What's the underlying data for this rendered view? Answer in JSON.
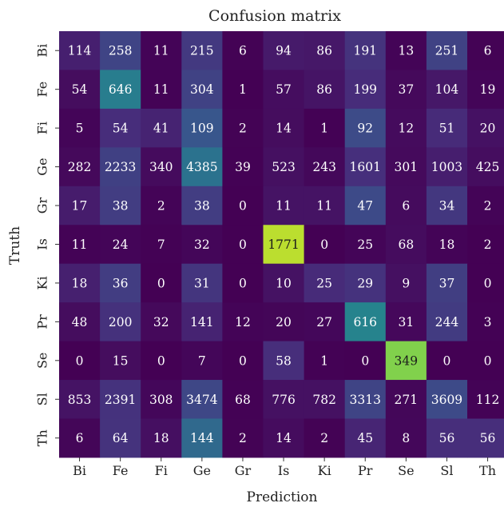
{
  "chart_data": {
    "type": "heatmap",
    "title": "Confusion matrix",
    "xlabel": "Prediction",
    "ylabel": "Truth",
    "x_categories": [
      "Bi",
      "Fe",
      "Fi",
      "Ge",
      "Gr",
      "Is",
      "Ki",
      "Pr",
      "Se",
      "Sl",
      "Th"
    ],
    "y_categories": [
      "Bi",
      "Fe",
      "Fi",
      "Ge",
      "Gr",
      "Is",
      "Ki",
      "Pr",
      "Se",
      "Sl",
      "Th"
    ],
    "values": [
      [
        114,
        258,
        11,
        215,
        6,
        94,
        86,
        191,
        13,
        251,
        6
      ],
      [
        54,
        646,
        11,
        304,
        1,
        57,
        86,
        199,
        37,
        104,
        19
      ],
      [
        5,
        54,
        41,
        109,
        2,
        14,
        1,
        92,
        12,
        51,
        20
      ],
      [
        282,
        2233,
        340,
        4385,
        39,
        523,
        243,
        1601,
        301,
        1003,
        425
      ],
      [
        17,
        38,
        2,
        38,
        0,
        11,
        11,
        47,
        6,
        34,
        2
      ],
      [
        11,
        24,
        7,
        32,
        0,
        1771,
        0,
        25,
        68,
        18,
        2
      ],
      [
        18,
        36,
        0,
        31,
        0,
        10,
        25,
        29,
        9,
        37,
        0
      ],
      [
        48,
        200,
        32,
        141,
        12,
        20,
        27,
        616,
        31,
        244,
        3
      ],
      [
        0,
        15,
        0,
        7,
        0,
        58,
        1,
        0,
        349,
        0,
        0
      ],
      [
        853,
        2391,
        308,
        3474,
        68,
        776,
        782,
        3313,
        271,
        3609,
        112
      ],
      [
        6,
        64,
        18,
        144,
        2,
        14,
        2,
        45,
        8,
        56,
        56
      ]
    ],
    "colormap": "viridis",
    "normalization": "row",
    "grid": false,
    "legend": "none"
  }
}
